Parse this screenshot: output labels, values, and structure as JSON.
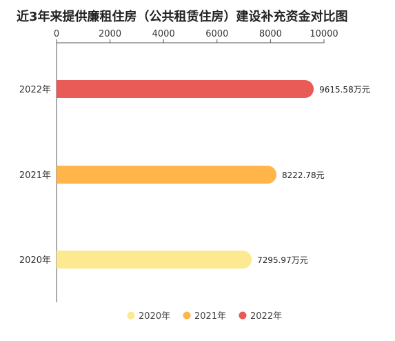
{
  "chart_data": {
    "type": "bar",
    "orientation": "horizontal",
    "title": "近3年来提供廉租住房（公共租赁住房）建设补充资金对比图",
    "xlabel": "",
    "ylabel": "",
    "xlim": [
      0,
      10000
    ],
    "x_ticks": [
      "0",
      "2000",
      "4000",
      "6000",
      "8000",
      "10000"
    ],
    "x_axis_position": "top",
    "grid": false,
    "legend_position": "bottom",
    "categories": [
      "2020年",
      "2021年",
      "2022年"
    ],
    "values": [
      7295.97,
      8222.78,
      9615.58
    ],
    "data_labels": [
      "7295.97万元",
      "8222.78元",
      "9615.58万元"
    ],
    "colors": [
      "#fde98f",
      "#ffb54a",
      "#e85b57"
    ],
    "legend": [
      "2020年",
      "2021年",
      "2022年"
    ]
  }
}
